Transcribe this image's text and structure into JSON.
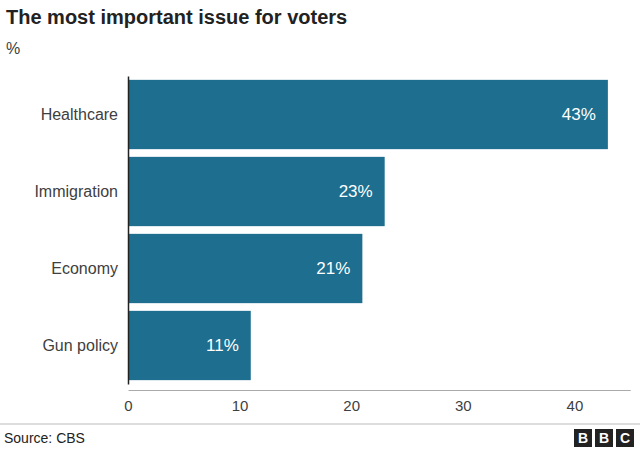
{
  "chart_data": {
    "type": "bar",
    "orientation": "horizontal",
    "title": "The most important issue for voters",
    "subtitle": "%",
    "categories": [
      "Healthcare",
      "Immigration",
      "Economy",
      "Gun policy"
    ],
    "values": [
      43,
      23,
      21,
      11
    ],
    "value_labels": [
      "43%",
      "23%",
      "21%",
      "11%"
    ],
    "data_labels": true,
    "color": "#1d6e8f",
    "xlim": [
      0,
      45
    ],
    "xticks": [
      0,
      10,
      20,
      30,
      40
    ],
    "grid": false,
    "source": "Source: CBS",
    "logo": "BBC"
  }
}
